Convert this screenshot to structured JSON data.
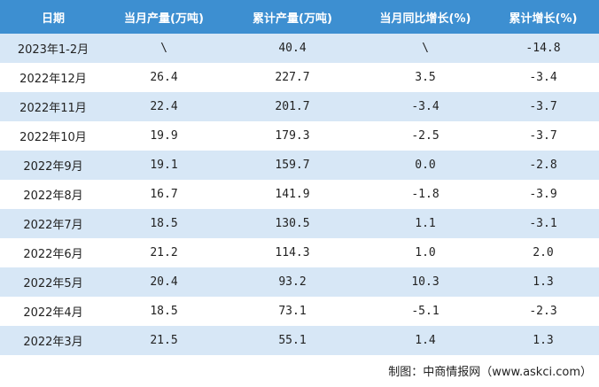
{
  "table": {
    "header": [
      "日期",
      "当月产量(万吨)",
      "累计产量(万吨)",
      "当月同比增长(%)",
      "累计增长(%)"
    ],
    "rows": [
      [
        "2023年1-2月",
        "\\",
        "40.4",
        "\\",
        "-14.8"
      ],
      [
        "2022年12月",
        "26.4",
        "227.7",
        "3.5",
        "-3.4"
      ],
      [
        "2022年11月",
        "22.4",
        "201.7",
        "-3.4",
        "-3.7"
      ],
      [
        "2022年10月",
        "19.9",
        "179.3",
        "-2.5",
        "-3.7"
      ],
      [
        "2022年9月",
        "19.1",
        "159.7",
        "0.0",
        "-2.8"
      ],
      [
        "2022年8月",
        "16.7",
        "141.9",
        "-1.8",
        "-3.9"
      ],
      [
        "2022年7月",
        "18.5",
        "130.5",
        "1.1",
        "-3.1"
      ],
      [
        "2022年6月",
        "21.2",
        "114.3",
        "1.0",
        "2.0"
      ],
      [
        "2022年5月",
        "20.4",
        "93.2",
        "10.3",
        "1.3"
      ],
      [
        "2022年4月",
        "18.5",
        "73.1",
        "-5.1",
        "-2.3"
      ],
      [
        "2022年3月",
        "21.5",
        "55.1",
        "1.4",
        "1.3"
      ]
    ]
  },
  "footer": "制图：中商情报网（www.askci.com）"
}
